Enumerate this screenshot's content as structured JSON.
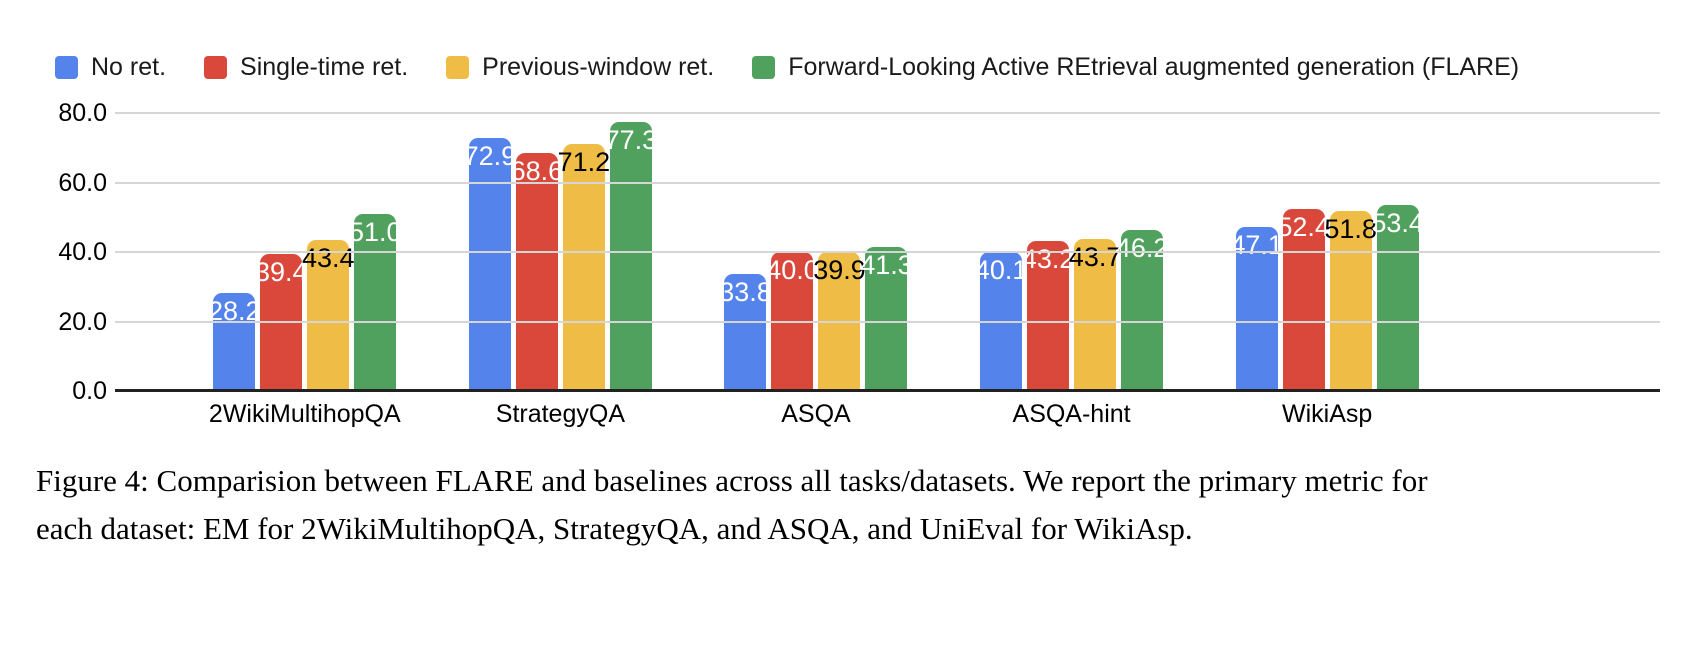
{
  "chart_data": {
    "type": "bar",
    "title": "",
    "categories": [
      "2WikiMultihopQA",
      "StrategyQA",
      "ASQA",
      "ASQA-hint",
      "WikiAsp"
    ],
    "series": [
      {
        "name": "No ret.",
        "color": "#5484EB",
        "label_color": "#ffffff",
        "values": [
          28.2,
          72.9,
          33.8,
          40.1,
          47.1
        ]
      },
      {
        "name": "Single-time ret.",
        "color": "#D9483B",
        "label_color": "#ffffff",
        "values": [
          39.4,
          68.6,
          40.0,
          43.2,
          52.4
        ]
      },
      {
        "name": "Previous-window ret.",
        "color": "#EFBD45",
        "label_color": "#000000",
        "values": [
          43.4,
          71.2,
          39.9,
          43.7,
          51.8
        ]
      },
      {
        "name": "Forward-Looking Active REtrieval augmented generation (FLARE)",
        "color": "#4FA15D",
        "label_color": "#ffffff",
        "values": [
          51.0,
          77.3,
          41.3,
          46.2,
          53.4
        ]
      }
    ],
    "yticks": [
      0,
      20,
      40,
      60,
      80
    ],
    "ytick_labels": [
      "0.0",
      "20.0",
      "40.0",
      "60.0",
      "80.0"
    ],
    "ylim": [
      0,
      82.3
    ],
    "grid": true,
    "legend_position": "top-left",
    "value_label_format": "one-decimal",
    "gridline_color": "#d6d6d6",
    "baseline_color": "#212121"
  },
  "caption": {
    "lines": [
      "Figure 4: Comparision between FLARE and baselines across all tasks/datasets. We report the primary metric for",
      "each dataset: EM for 2WikiMultihopQA, StrategyQA, and ASQA, and UniEval for WikiAsp."
    ]
  }
}
